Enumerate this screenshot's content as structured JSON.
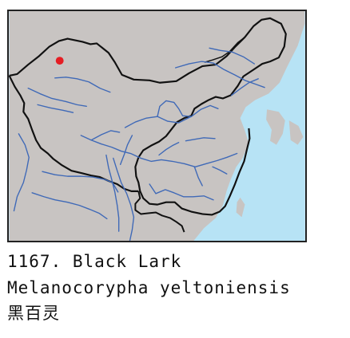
{
  "caption": {
    "number_and_name": "1167. Black Lark",
    "scientific_name": "Melanocorypha yeltoniensis",
    "chinese_name": "黑百灵"
  },
  "map": {
    "colors": {
      "land": "#c8c4c2",
      "sea": "#b7e3f5",
      "border": "#111111",
      "rivers": "#3f69b7",
      "sighting_marker": "#e51d23"
    },
    "marker_label": "sighting marker"
  }
}
